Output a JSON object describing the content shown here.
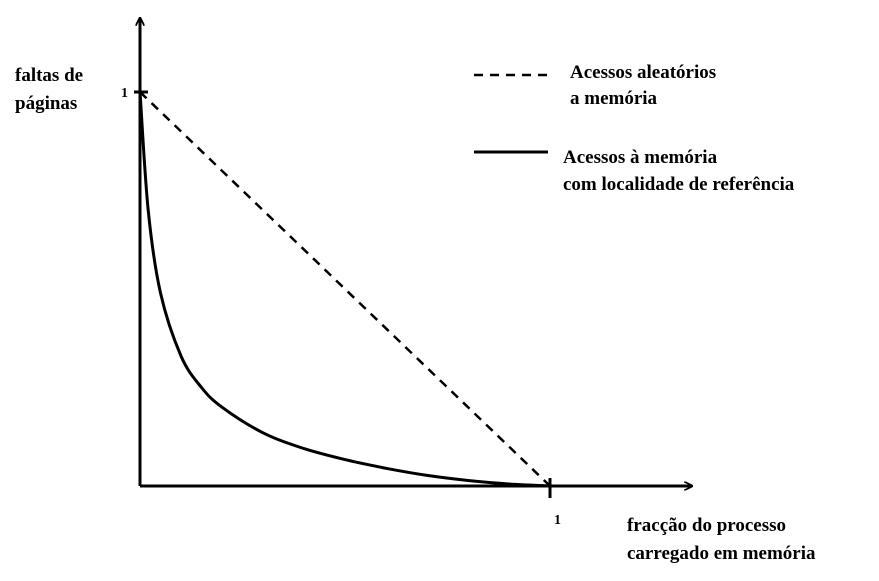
{
  "chart_data": {
    "type": "line",
    "title": "",
    "ylabel": [
      "faltas de",
      "páginas"
    ],
    "xlabel": [
      "fracção do processo",
      "carregado em memória"
    ],
    "xlim": [
      0,
      1
    ],
    "ylim": [
      0,
      1
    ],
    "x_ticks": [
      "1"
    ],
    "y_ticks": [
      "1"
    ],
    "grid": false,
    "legend_position": "top-right",
    "series": [
      {
        "name": [
          "Acessos aleatórios",
          "a memória"
        ],
        "style": "dashed",
        "color": "#000000",
        "x": [
          0,
          1
        ],
        "y": [
          1,
          0
        ]
      },
      {
        "name": [
          "Acessos à memória",
          "com localidade de referência"
        ],
        "style": "solid",
        "color": "#000000",
        "x": [
          0,
          0.02,
          0.05,
          0.1,
          0.15,
          0.2,
          0.3,
          0.4,
          0.5,
          0.6,
          0.7,
          0.8,
          0.9,
          1
        ],
        "y": [
          1,
          0.7,
          0.49,
          0.33,
          0.25,
          0.2,
          0.135,
          0.095,
          0.067,
          0.045,
          0.027,
          0.014,
          0.005,
          0
        ]
      }
    ]
  }
}
